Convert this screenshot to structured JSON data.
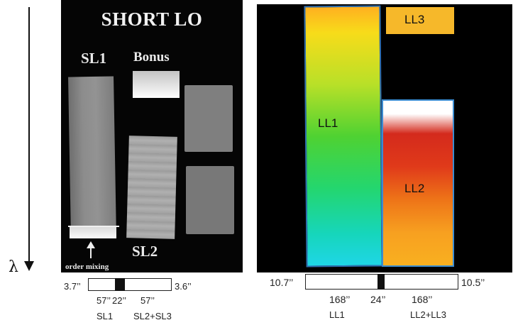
{
  "left_panel": {
    "title": "SHORT LO",
    "label_sl1": "SL1",
    "label_bonus": "Bonus",
    "label_sl2": "SL2",
    "label_order_mixing": "order mixing"
  },
  "right_panel": {
    "label_ll1": "LL1",
    "label_ll2": "LL2",
    "label_ll3": "LL3"
  },
  "axis": {
    "lambda_symbol": "λ"
  },
  "short_scale": {
    "left_width": "3.7’’",
    "right_width": "3.6’’",
    "seg1_length": "57’’",
    "gap_length": "22’’",
    "seg2_length": "57’’",
    "seg1_name": "SL1",
    "seg2_name": "SL2+SL3"
  },
  "long_scale": {
    "left_width": "10.7’’",
    "right_width": "10.5’’",
    "seg1_length": "168’’",
    "gap_length": "24’’",
    "seg2_length": "168’’",
    "seg1_name": "LL1",
    "seg2_name": "LL2+LL3"
  },
  "colors": {
    "panel_background": "#000000",
    "ll1_top": "#ffb020",
    "ll1_bottom": "#1fd6e6",
    "ll2_top": "#d42a1c",
    "ll3": "#f6b82a"
  }
}
